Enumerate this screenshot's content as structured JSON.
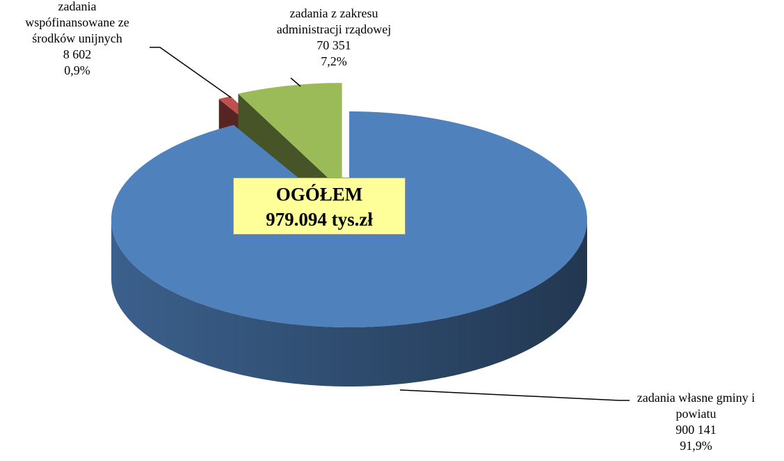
{
  "chart_data": {
    "type": "pie3d",
    "categories": [
      "zadania własne gminy i powiatu",
      "zadania wspófinansowane ze środków unijnych",
      "zadania z zakresu administracji rządowej"
    ],
    "values": [
      900141,
      8602,
      70351
    ],
    "value_labels": [
      "900 141",
      "8 602",
      "70 351"
    ],
    "percentages": [
      91.9,
      0.9,
      7.2
    ],
    "percentage_labels": [
      "91,9%",
      "0,9%",
      "7,2%"
    ],
    "colors": [
      "#4f81bd",
      "#c0504d",
      "#9bbb59"
    ],
    "exploded": [
      false,
      true,
      true
    ],
    "annotation": {
      "title": "OGÓŁEM",
      "total": "979.094 tys.zł"
    }
  }
}
